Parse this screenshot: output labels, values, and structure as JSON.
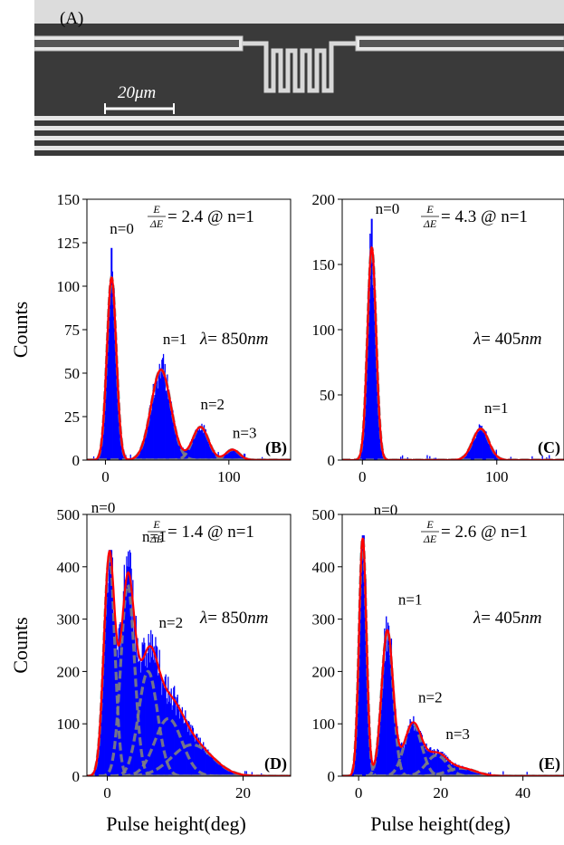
{
  "panel_a": {
    "label": "(A)",
    "scale_bar_label": "20μm",
    "colors": {
      "background": "#3a3a3a",
      "metal": "#e6e6e6",
      "top_band": "#dcdcdc"
    }
  },
  "chart_data": [
    {
      "id": "B",
      "type": "bar",
      "panel_label": "(B)",
      "xlabel": "",
      "ylabel": "Counts",
      "xlim": [
        -15,
        150
      ],
      "ylim": [
        0,
        150
      ],
      "xticks": [
        0,
        100
      ],
      "yticks": [
        0,
        25,
        50,
        75,
        100,
        125,
        150
      ],
      "resolution_text": "= 2.4 @ n=1",
      "wavelength_text": "= 850",
      "wavelength_unit": "nm",
      "peaks": [
        {
          "label": "n=0",
          "center": 5,
          "sigma": 3.8,
          "height": 105
        },
        {
          "label": "n=1",
          "center": 45,
          "sigma": 8.0,
          "height": 52
        },
        {
          "label": "n=2",
          "center": 77,
          "sigma": 6.5,
          "height": 19
        },
        {
          "label": "n=3",
          "center": 103,
          "sigma": 5.5,
          "height": 6
        }
      ],
      "histogram_max_counts": 122
    },
    {
      "id": "C",
      "type": "bar",
      "panel_label": "(C)",
      "xlabel": "",
      "ylabel": "",
      "xlim": [
        -15,
        150
      ],
      "ylim": [
        0,
        200
      ],
      "xticks": [
        0,
        100
      ],
      "yticks": [
        0,
        50,
        100,
        150,
        200
      ],
      "resolution_text": "= 4.3 @ n=1",
      "wavelength_text": "= 405",
      "wavelength_unit": "nm",
      "peaks": [
        {
          "label": "n=0",
          "center": 7,
          "sigma": 3.2,
          "height": 163
        },
        {
          "label": "n=1",
          "center": 88,
          "sigma": 6.0,
          "height": 24
        }
      ],
      "histogram_max_counts": 185
    },
    {
      "id": "D",
      "type": "bar",
      "panel_label": "(D)",
      "xlabel": "Pulse height(deg)",
      "ylabel": "Counts",
      "xlim": [
        -3,
        27
      ],
      "ylim": [
        0,
        500
      ],
      "xticks": [
        0,
        20
      ],
      "yticks": [
        0,
        100,
        200,
        300,
        400,
        500
      ],
      "resolution_text": "= 1.4 @ n=1",
      "wavelength_text": "= 850",
      "wavelength_unit": "nm",
      "peaks": [
        {
          "label": "n=0",
          "center": 0.3,
          "sigma": 0.8,
          "height": 420
        },
        {
          "label": "n=1",
          "center": 3.0,
          "sigma": 1.0,
          "height": 365
        },
        {
          "label": "n=2",
          "center": 6.0,
          "sigma": 1.4,
          "height": 200
        },
        {
          "label": "",
          "center": 9.0,
          "sigma": 2.0,
          "height": 110
        },
        {
          "label": "",
          "center": 12.5,
          "sigma": 3.0,
          "height": 60
        }
      ],
      "histogram_max_counts": 432
    },
    {
      "id": "E",
      "type": "bar",
      "panel_label": "(E)",
      "xlabel": "Pulse height(deg)",
      "ylabel": "",
      "xlim": [
        -4,
        50
      ],
      "ylim": [
        0,
        500
      ],
      "xticks": [
        0,
        20,
        40
      ],
      "yticks": [
        0,
        100,
        200,
        300,
        400,
        500
      ],
      "resolution_text": "= 2.6 @ n=1",
      "wavelength_text": "= 405",
      "wavelength_unit": "nm",
      "peaks": [
        {
          "label": "n=0",
          "center": 1,
          "sigma": 0.9,
          "height": 455
        },
        {
          "label": "n=1",
          "center": 7,
          "sigma": 1.4,
          "height": 278
        },
        {
          "label": "n=2",
          "center": 13.2,
          "sigma": 2.1,
          "height": 100
        },
        {
          "label": "n=3",
          "center": 19,
          "sigma": 2.5,
          "height": 40
        },
        {
          "label": "",
          "center": 25,
          "sigma": 3.5,
          "height": 15
        }
      ],
      "histogram_max_counts": 460
    }
  ],
  "styles": {
    "histogram": "#0000ff",
    "fit_total": "#ff0000",
    "fit_component": "#808080"
  }
}
